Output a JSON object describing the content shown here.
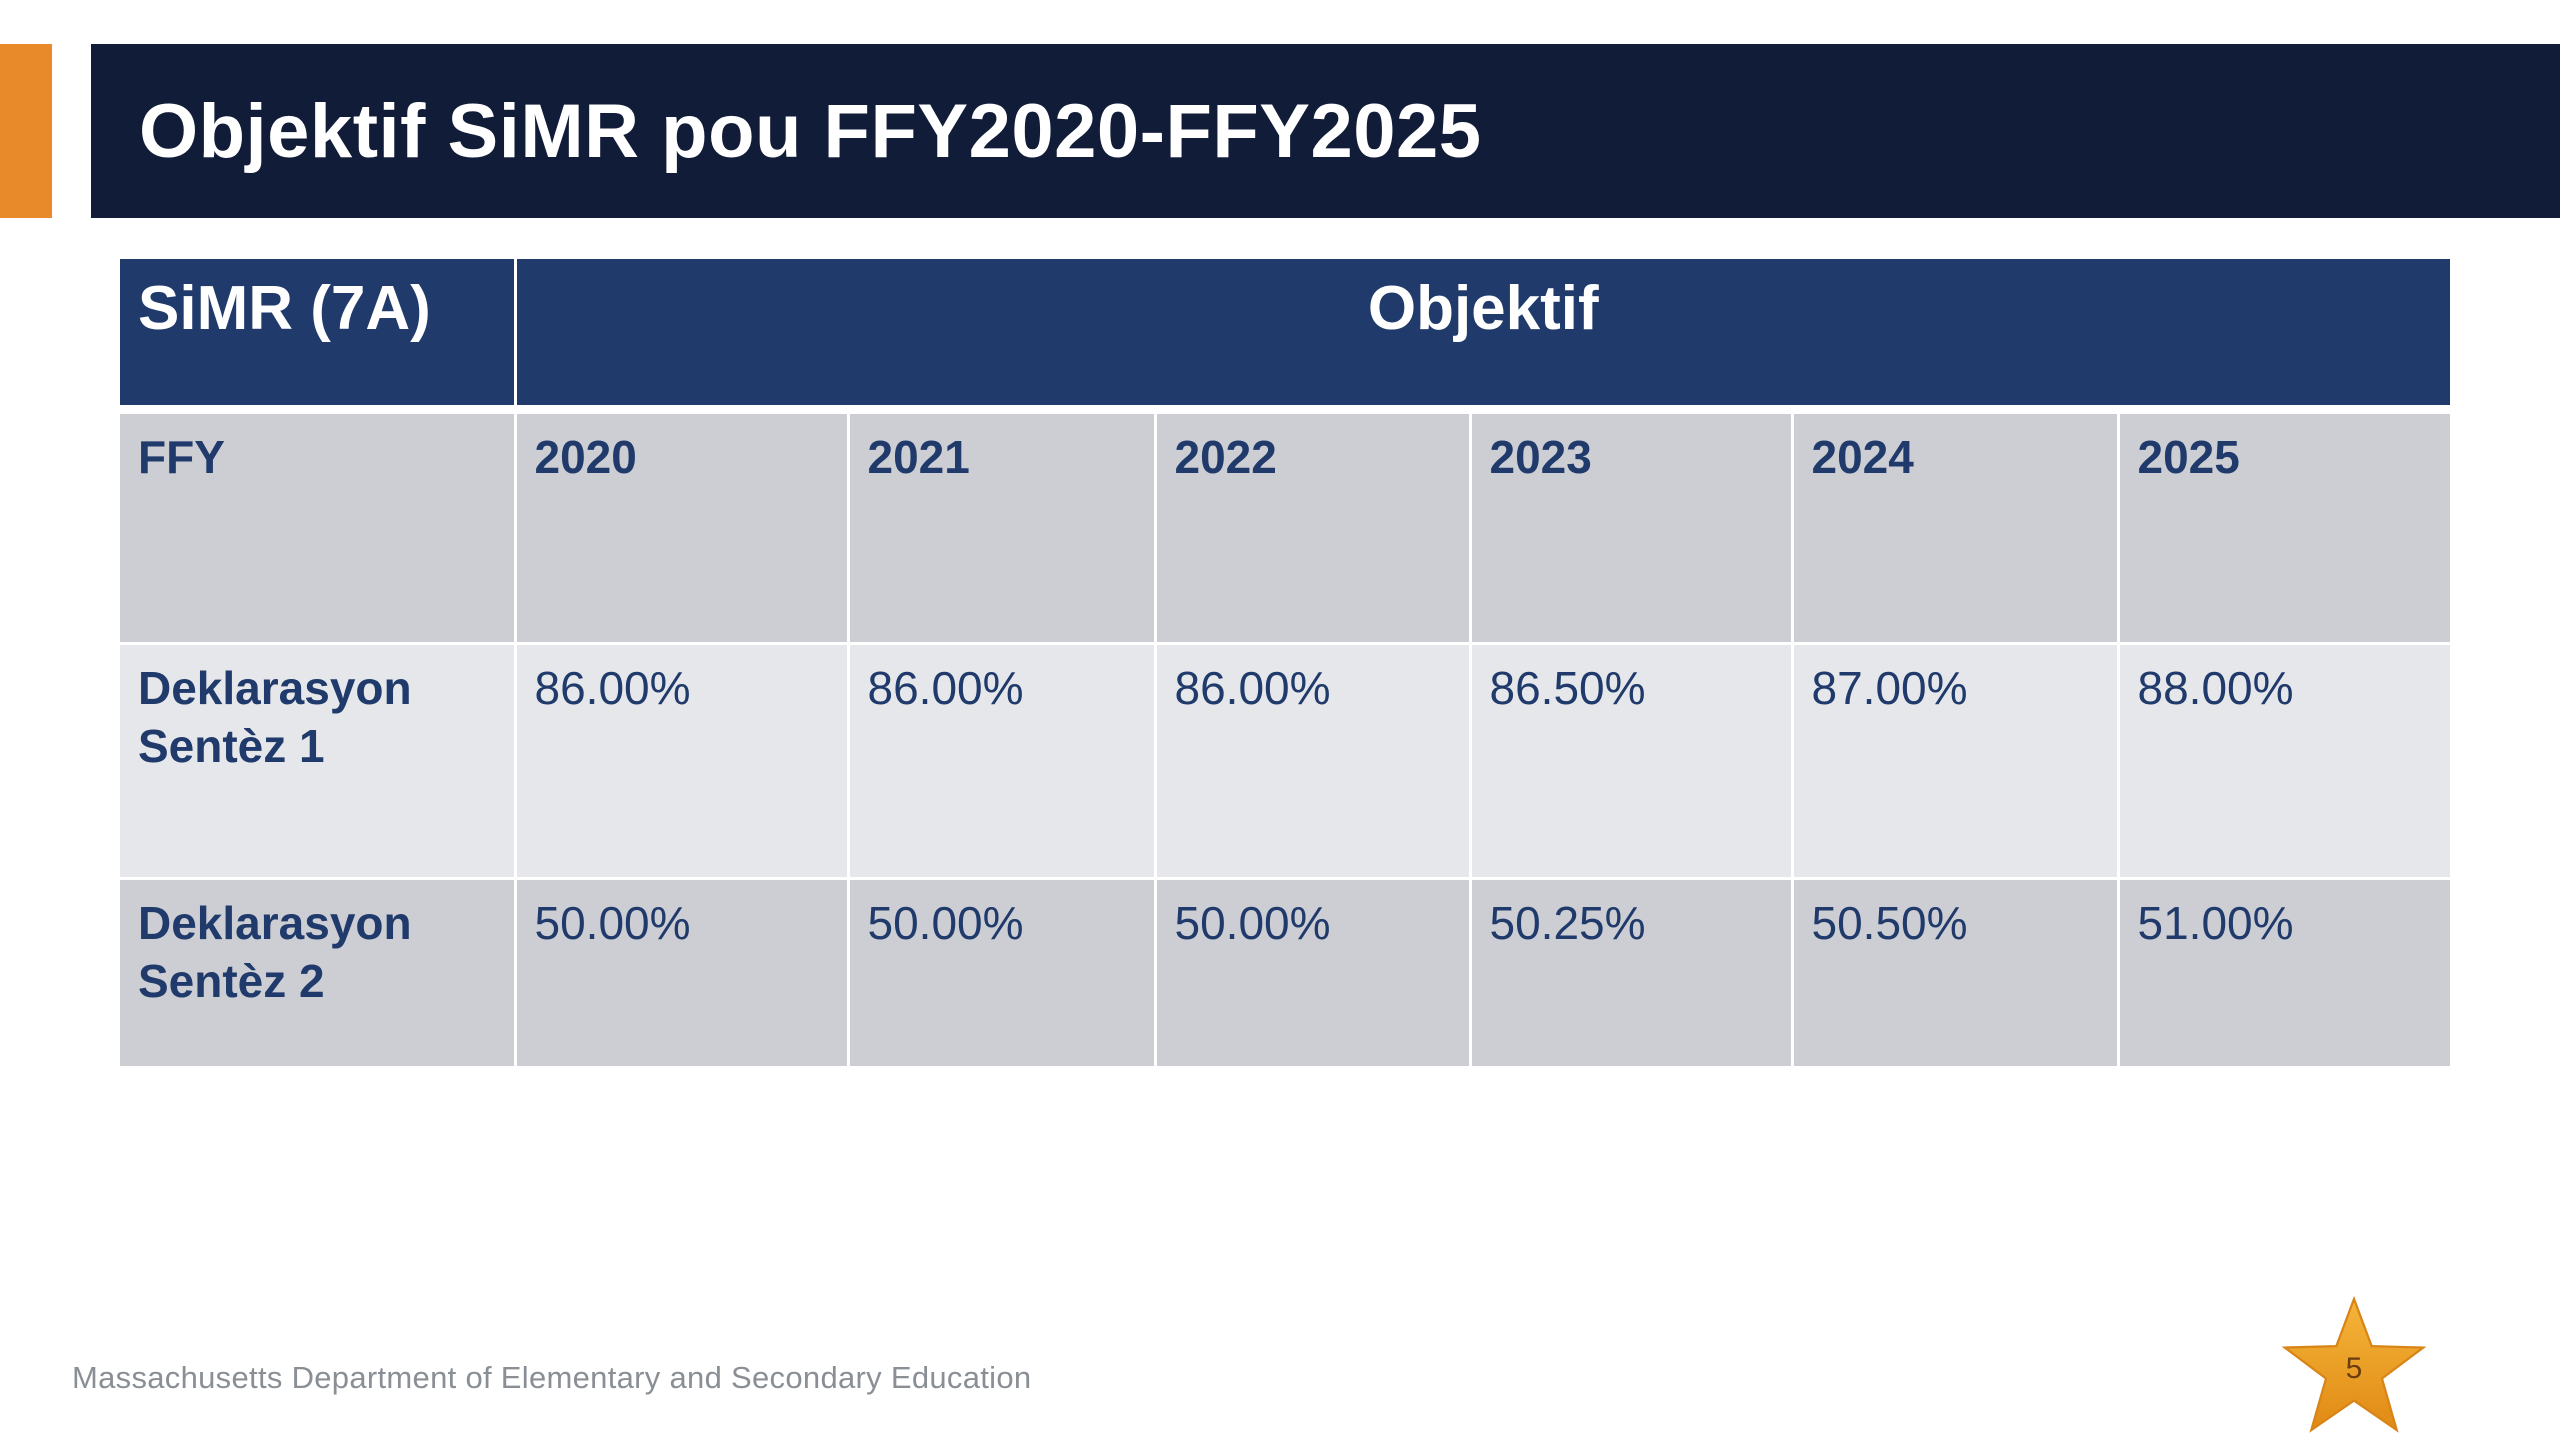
{
  "title": "Objektif SiMR pou FFY2020-FFY2025",
  "table": {
    "header": {
      "label": "SiMR (7A)",
      "span_label": "Objektif"
    },
    "ffy_row": {
      "label": "FFY",
      "cells": [
        "2020",
        "2021",
        "2022",
        "2023",
        "2024",
        "2025"
      ]
    },
    "rows": [
      {
        "label": "Deklarasyon Sentèz 1",
        "cells": [
          "86.00%",
          "86.00%",
          "86.00%",
          "86.50%",
          "87.00%",
          "88.00%"
        ]
      },
      {
        "label": "Deklarasyon Sentèz 2",
        "cells": [
          "50.00%",
          "50.00%",
          "50.00%",
          "50.25%",
          "50.50%",
          "51.00%"
        ]
      }
    ]
  },
  "footer": "Massachusetts Department of Elementary and Secondary Education",
  "page_number": "5",
  "colors": {
    "accent": "#e8892a",
    "title_bar": "#111c38",
    "table_header": "#1f3a6b",
    "table_text": "#1f3a6b",
    "row_dark": "#cdced3",
    "row_light": "#e6e7ea",
    "star": "#f0a21e"
  },
  "icons": {
    "page_marker": "star-icon"
  }
}
